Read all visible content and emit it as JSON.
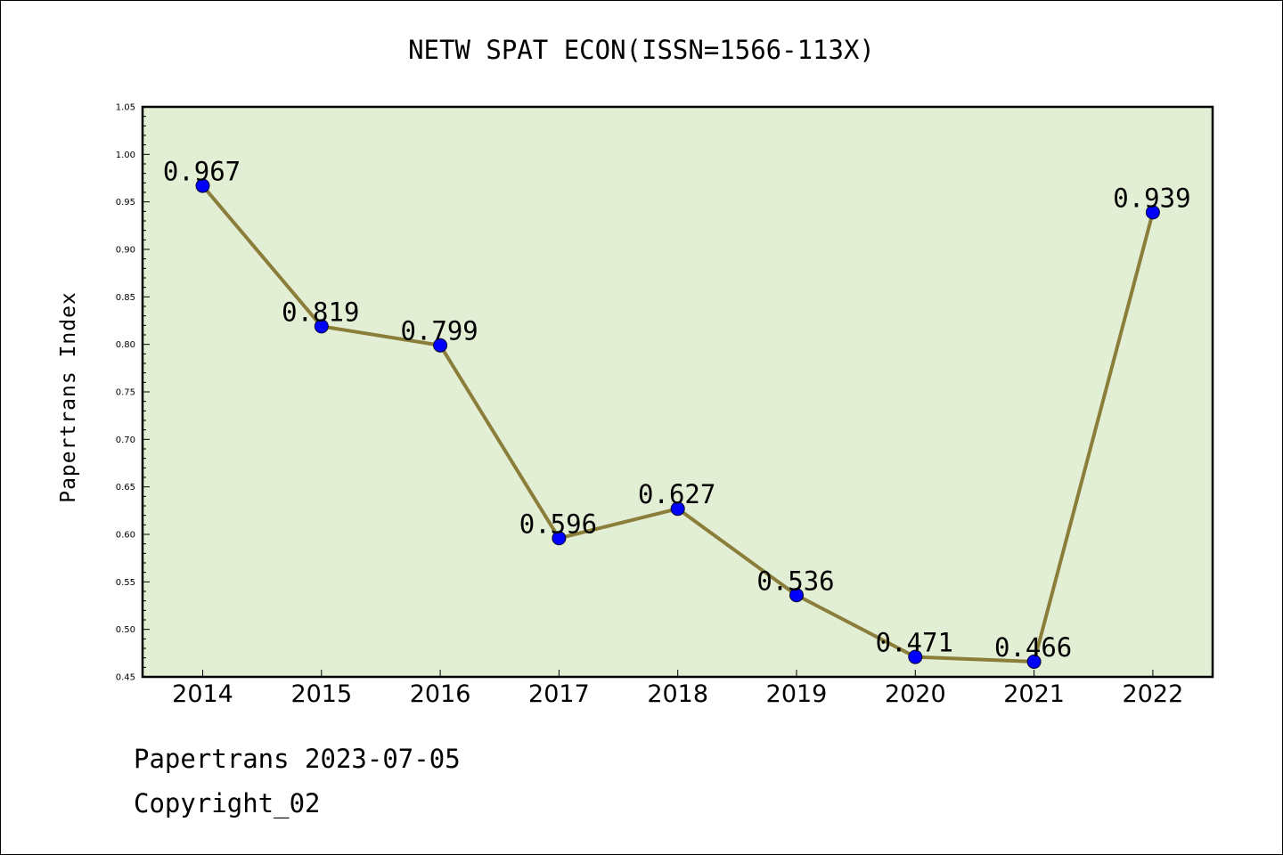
{
  "chart_data": {
    "type": "line",
    "title": "NETW SPAT ECON(ISSN=1566-113X)",
    "xlabel": "",
    "ylabel": "Papertrans Index",
    "categories": [
      "2014",
      "2015",
      "2016",
      "2017",
      "2018",
      "2019",
      "2020",
      "2021",
      "2022"
    ],
    "values": [
      0.967,
      0.819,
      0.799,
      0.596,
      0.627,
      0.536,
      0.471,
      0.466,
      0.939
    ],
    "data_labels": [
      "0.967",
      "0.819",
      "0.799",
      "0.596",
      "0.627",
      "0.536",
      "0.471",
      "0.466",
      "0.939"
    ],
    "ylim": [
      0.45,
      1.05
    ],
    "yticks": [
      "0.45",
      "0.50",
      "0.55",
      "0.60",
      "0.65",
      "0.70",
      "0.75",
      "0.80",
      "0.85",
      "0.90",
      "0.95",
      "1.00",
      "1.05"
    ],
    "grid": false,
    "legend": "none",
    "colors": {
      "line": "#8b7d3a",
      "marker": "#0000ff",
      "plot_background": "#e2efd5",
      "page_background": "#ffffff"
    }
  },
  "footer": {
    "date_line": "Papertrans 2023-07-05",
    "copyright_line": "Copyright_02"
  }
}
